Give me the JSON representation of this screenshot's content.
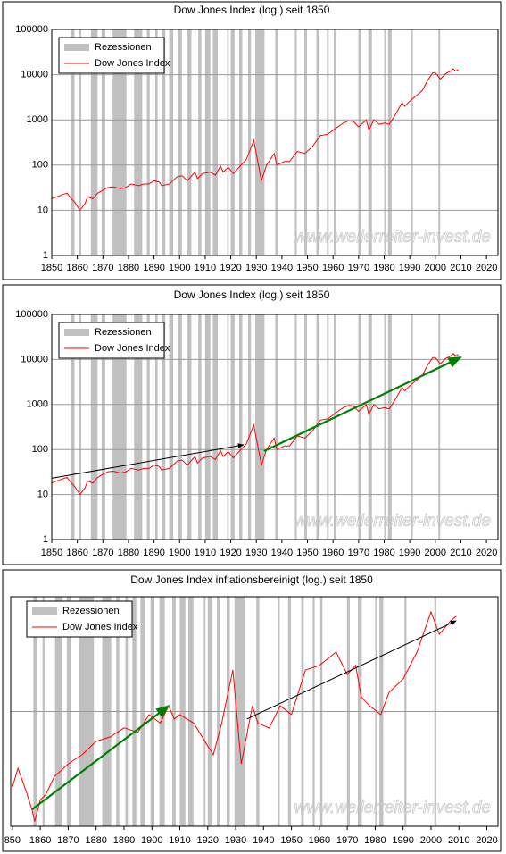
{
  "chart_data": [
    {
      "type": "line",
      "title": "Dow Jones Index (log.) seit 1850",
      "watermark": "www.wellerreiter-invest.de",
      "legend": "upper left",
      "grid": true,
      "ylog": true,
      "ytick_labels": true,
      "xlim": [
        1850,
        2024.5
      ],
      "xticks": [
        1850,
        1860,
        1870,
        1880,
        1890,
        1900,
        1910,
        1920,
        1930,
        1940,
        1950,
        1960,
        1970,
        1980,
        1990,
        2000,
        2010,
        2020
      ],
      "ylim": [
        1,
        100000
      ],
      "yticks": [
        1,
        10,
        100,
        1000,
        10000,
        100000
      ],
      "recessions": {
        "name": "Rezessionen",
        "color": "#c0c0c0",
        "periods": [
          [
            1857.5,
            1858.9
          ],
          [
            1860.8,
            1861.5
          ],
          [
            1865.3,
            1867.9
          ],
          [
            1869.5,
            1870.9
          ],
          [
            1873.8,
            1879.2
          ],
          [
            1882.2,
            1885.4
          ],
          [
            1887.2,
            1888.3
          ],
          [
            1890.5,
            1891.4
          ],
          [
            1893.0,
            1894.4
          ],
          [
            1895.9,
            1897.5
          ],
          [
            1899.5,
            1900.9
          ],
          [
            1902.7,
            1904.6
          ],
          [
            1907.3,
            1908.5
          ],
          [
            1910.0,
            1912.0
          ],
          [
            1913.0,
            1914.9
          ],
          [
            1918.6,
            1919.2
          ],
          [
            1920.0,
            1921.5
          ],
          [
            1923.3,
            1924.5
          ],
          [
            1926.8,
            1927.9
          ],
          [
            1929.6,
            1933.2
          ],
          [
            1937.4,
            1938.5
          ],
          [
            1945.1,
            1945.8
          ],
          [
            1948.8,
            1949.8
          ],
          [
            1953.5,
            1954.4
          ],
          [
            1957.6,
            1958.3
          ],
          [
            1960.3,
            1961.1
          ],
          [
            1969.9,
            1970.9
          ],
          [
            1973.8,
            1975.2
          ],
          [
            1980.0,
            1980.5
          ],
          [
            1981.5,
            1982.9
          ],
          [
            1990.5,
            1991.2
          ],
          [
            2001.2,
            2001.9
          ]
        ]
      },
      "series": [
        {
          "name": "Dow Jones Index",
          "color": "#ff0000",
          "x": [
            1850,
            1852,
            1854,
            1856,
            1857,
            1859,
            1861,
            1863,
            1864,
            1866,
            1868,
            1870,
            1872,
            1874,
            1877,
            1879,
            1881,
            1884,
            1886,
            1888,
            1890,
            1892,
            1893,
            1896,
            1899,
            1901,
            1903,
            1906,
            1907,
            1909,
            1912,
            1914,
            1916,
            1917,
            1919,
            1921,
            1924,
            1926,
            1929,
            1932,
            1934,
            1937,
            1938,
            1941,
            1943,
            1946,
            1949,
            1952,
            1955,
            1958,
            1961,
            1964,
            1966,
            1968,
            1970,
            1973,
            1974,
            1976,
            1978,
            1980,
            1982,
            1984,
            1987,
            1988,
            1990,
            1993,
            1995,
            1997,
            1999,
            2000,
            2002,
            2004,
            2006,
            2007,
            2008,
            2009
          ],
          "values": [
            18,
            20,
            22,
            24,
            20,
            15,
            10,
            14,
            20,
            18,
            24,
            28,
            32,
            33,
            30,
            32,
            38,
            35,
            38,
            38,
            45,
            42,
            35,
            38,
            55,
            58,
            45,
            70,
            50,
            65,
            70,
            60,
            95,
            70,
            90,
            65,
            100,
            130,
            350,
            45,
            100,
            180,
            100,
            120,
            120,
            200,
            180,
            260,
            450,
            480,
            650,
            850,
            950,
            920,
            700,
            1000,
            600,
            1000,
            800,
            850,
            800,
            1200,
            2400,
            2000,
            2600,
            3600,
            4500,
            7500,
            11000,
            11000,
            8000,
            10500,
            12000,
            13500,
            12000,
            13000
          ]
        }
      ],
      "arrows": []
    },
    {
      "type": "line",
      "title": "Dow Jones Index (log.) seit 1850",
      "watermark": "www.wellerreiter-invest.de",
      "legend": "upper left",
      "grid": true,
      "ylog": true,
      "ytick_labels": true,
      "xlim": [
        1850,
        2024.5
      ],
      "xticks": [
        1850,
        1860,
        1870,
        1880,
        1890,
        1900,
        1910,
        1920,
        1930,
        1940,
        1950,
        1960,
        1970,
        1980,
        1990,
        2000,
        2010,
        2020
      ],
      "ylim": [
        1,
        100000
      ],
      "yticks": [
        1,
        10,
        100,
        1000,
        10000,
        100000
      ],
      "recessions": {
        "name": "Rezessionen",
        "color": "#c0c0c0",
        "periods": [
          [
            1857.5,
            1858.9
          ],
          [
            1860.8,
            1861.5
          ],
          [
            1865.3,
            1867.9
          ],
          [
            1869.5,
            1870.9
          ],
          [
            1873.8,
            1879.2
          ],
          [
            1882.2,
            1885.4
          ],
          [
            1887.2,
            1888.3
          ],
          [
            1890.5,
            1891.4
          ],
          [
            1893.0,
            1894.4
          ],
          [
            1895.9,
            1897.5
          ],
          [
            1899.5,
            1900.9
          ],
          [
            1902.7,
            1904.6
          ],
          [
            1907.3,
            1908.5
          ],
          [
            1910.0,
            1912.0
          ],
          [
            1913.0,
            1914.9
          ],
          [
            1918.6,
            1919.2
          ],
          [
            1920.0,
            1921.5
          ],
          [
            1923.3,
            1924.5
          ],
          [
            1926.8,
            1927.9
          ],
          [
            1929.6,
            1933.2
          ],
          [
            1937.4,
            1938.5
          ],
          [
            1945.1,
            1945.8
          ],
          [
            1948.8,
            1949.8
          ],
          [
            1953.5,
            1954.4
          ],
          [
            1957.6,
            1958.3
          ],
          [
            1960.3,
            1961.1
          ],
          [
            1969.9,
            1970.9
          ],
          [
            1973.8,
            1975.2
          ],
          [
            1980.0,
            1980.5
          ],
          [
            1981.5,
            1982.9
          ],
          [
            1990.5,
            1991.2
          ],
          [
            2001.2,
            2001.9
          ]
        ]
      },
      "series": [
        {
          "name": "Dow Jones Index",
          "color": "#ff0000",
          "x": [
            1850,
            1852,
            1854,
            1856,
            1857,
            1859,
            1861,
            1863,
            1864,
            1866,
            1868,
            1870,
            1872,
            1874,
            1877,
            1879,
            1881,
            1884,
            1886,
            1888,
            1890,
            1892,
            1893,
            1896,
            1899,
            1901,
            1903,
            1906,
            1907,
            1909,
            1912,
            1914,
            1916,
            1917,
            1919,
            1921,
            1924,
            1926,
            1929,
            1932,
            1934,
            1937,
            1938,
            1941,
            1943,
            1946,
            1949,
            1952,
            1955,
            1958,
            1961,
            1964,
            1966,
            1968,
            1970,
            1973,
            1974,
            1976,
            1978,
            1980,
            1982,
            1984,
            1987,
            1988,
            1990,
            1993,
            1995,
            1997,
            1999,
            2000,
            2002,
            2004,
            2006,
            2007,
            2008,
            2009
          ],
          "values": [
            18,
            20,
            22,
            24,
            20,
            15,
            10,
            14,
            20,
            18,
            24,
            28,
            32,
            33,
            30,
            32,
            38,
            35,
            38,
            38,
            45,
            42,
            35,
            38,
            55,
            58,
            45,
            70,
            50,
            65,
            70,
            60,
            95,
            70,
            90,
            65,
            100,
            130,
            350,
            45,
            100,
            180,
            100,
            120,
            120,
            200,
            180,
            260,
            450,
            480,
            650,
            850,
            950,
            920,
            700,
            1000,
            600,
            1000,
            800,
            850,
            800,
            1200,
            2400,
            2000,
            2600,
            3600,
            4500,
            7500,
            11000,
            11000,
            8000,
            10500,
            12000,
            13500,
            12000,
            13000
          ]
        }
      ],
      "arrows": [
        {
          "color": "#000000",
          "x": [
            1850,
            1925
          ],
          "y": [
            23,
            127
          ]
        },
        {
          "color": "#008000",
          "x": [
            1933,
            2010
          ],
          "y": [
            92,
            11200
          ]
        }
      ]
    },
    {
      "type": "line",
      "title": "Dow Jones Index inflationsbereinigt (log.) seit 1850",
      "watermark": "www.wellerreiter-invest.de",
      "legend": "upper left",
      "grid": true,
      "ylog": true,
      "ytick_labels": false,
      "xlim": [
        1849.4,
        2024
      ],
      "xticks": [
        {
          "value": 1850,
          "label": "850"
        },
        1860,
        1870,
        1880,
        1890,
        1900,
        1910,
        1920,
        1930,
        1940,
        1950,
        1960,
        1970,
        1980,
        1990,
        2000,
        2010,
        2020
      ],
      "ylim": [
        10,
        1000
      ],
      "yticks": [
        100
      ],
      "recessions": {
        "name": "Rezessionen",
        "color": "#c0c0c0",
        "periods": [
          [
            1857.5,
            1858.9
          ],
          [
            1860.8,
            1861.5
          ],
          [
            1865.3,
            1867.9
          ],
          [
            1869.5,
            1870.9
          ],
          [
            1873.8,
            1879.2
          ],
          [
            1882.2,
            1885.4
          ],
          [
            1887.2,
            1888.3
          ],
          [
            1890.5,
            1891.4
          ],
          [
            1893.0,
            1894.4
          ],
          [
            1895.9,
            1897.5
          ],
          [
            1899.5,
            1900.9
          ],
          [
            1902.7,
            1904.6
          ],
          [
            1907.3,
            1908.5
          ],
          [
            1910.0,
            1912.0
          ],
          [
            1913.0,
            1914.9
          ],
          [
            1918.6,
            1919.2
          ],
          [
            1920.0,
            1921.5
          ],
          [
            1923.3,
            1924.5
          ],
          [
            1926.8,
            1927.9
          ],
          [
            1929.6,
            1933.2
          ],
          [
            1937.4,
            1938.5
          ],
          [
            1945.1,
            1945.8
          ],
          [
            1948.8,
            1949.8
          ],
          [
            1953.5,
            1954.4
          ],
          [
            1957.6,
            1958.3
          ],
          [
            1960.3,
            1961.1
          ],
          [
            1969.9,
            1970.9
          ],
          [
            1973.8,
            1975.2
          ],
          [
            1980.0,
            1980.5
          ],
          [
            1981.5,
            1982.9
          ],
          [
            1990.5,
            1991.2
          ],
          [
            2001.2,
            2001.9
          ]
        ]
      },
      "series": [
        {
          "name": "Dow Jones Index",
          "color": "#ff0000",
          "x": [
            1850,
            1852,
            1855,
            1857,
            1858,
            1860,
            1862,
            1865,
            1870,
            1875,
            1880,
            1885,
            1890,
            1895,
            1899,
            1903,
            1906,
            1908,
            1910,
            1915,
            1917,
            1920,
            1922,
            1925,
            1929,
            1932,
            1936,
            1938,
            1942,
            1946,
            1950,
            1955,
            1960,
            1966,
            1970,
            1973,
            1975,
            1978,
            1982,
            1985,
            1990,
            1995,
            2000,
            2003,
            2007,
            2009
          ],
          "values": [
            22,
            32,
            20,
            14,
            11,
            17,
            19,
            27,
            35,
            42,
            55,
            60,
            72,
            66,
            94,
            79,
            112,
            86,
            94,
            79,
            66,
            50,
            42,
            79,
            230,
            35,
            112,
            79,
            72,
            112,
            94,
            230,
            252,
            330,
            210,
            252,
            134,
            112,
            94,
            147,
            192,
            330,
            738,
            471,
            617,
            675
          ]
        }
      ],
      "arrows": [
        {
          "color": "#008000",
          "x": [
            1857,
            1906
          ],
          "y": [
            14,
            112
          ]
        },
        {
          "color": "#000000",
          "x": [
            1934,
            2009
          ],
          "y": [
            86,
            617
          ]
        }
      ]
    }
  ]
}
